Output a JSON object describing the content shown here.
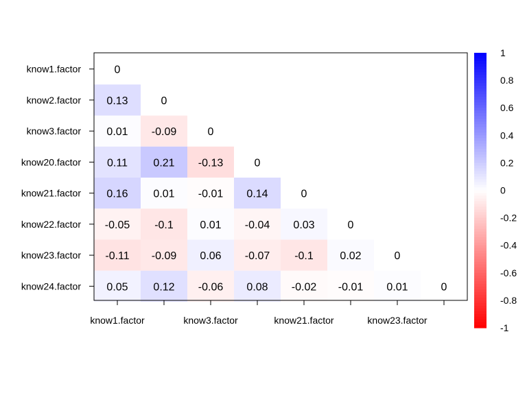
{
  "chart_data": {
    "type": "heatmap",
    "title": "",
    "xlabel": "",
    "ylabel": "",
    "row_labels": [
      "know1.factor",
      "know2.factor",
      "know3.factor",
      "know20.factor",
      "know21.factor",
      "know22.factor",
      "know23.factor",
      "know24.factor"
    ],
    "x_tick_labels": [
      "know1.factor",
      "",
      "know3.factor",
      "",
      "know21.factor",
      "",
      "know23.factor",
      ""
    ],
    "values": [
      [
        0
      ],
      [
        0.13,
        0
      ],
      [
        0.01,
        -0.09,
        0
      ],
      [
        0.11,
        0.21,
        -0.13,
        0
      ],
      [
        0.16,
        0.01,
        -0.01,
        0.14,
        0
      ],
      [
        -0.05,
        -0.1,
        0.01,
        -0.04,
        0.03,
        0
      ],
      [
        -0.11,
        -0.09,
        0.06,
        -0.07,
        -0.1,
        0.02,
        0
      ],
      [
        0.05,
        0.12,
        -0.06,
        0.08,
        -0.02,
        -0.01,
        0.01,
        0
      ]
    ],
    "color_scale": {
      "min": -1,
      "max": 1,
      "low_color": "#ff0000",
      "mid_color": "#ffffff",
      "high_color": "#0000ff",
      "ticks": [
        "1",
        "0.8",
        "0.6",
        "0.4",
        "0.2",
        "0",
        "-0.2",
        "-0.4",
        "-0.6",
        "-0.8",
        "-1"
      ]
    },
    "grid": false,
    "legend_position": "right"
  }
}
